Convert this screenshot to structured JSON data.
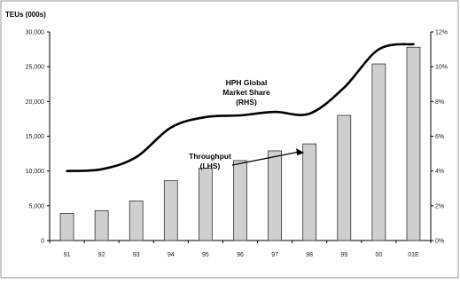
{
  "chart_data": {
    "type": "bar",
    "title": "",
    "categories": [
      "91",
      "92",
      "93",
      "94",
      "95",
      "96",
      "97",
      "98",
      "99",
      "00",
      "01E"
    ],
    "left_axis": {
      "unit_label": "TEUs (000s)",
      "ylim": [
        0,
        30000
      ],
      "ticks": [
        "0",
        "5,000",
        "10,000",
        "15,000",
        "20,000",
        "25,000",
        "30,000"
      ]
    },
    "right_axis": {
      "ylim": [
        0,
        12
      ],
      "ticks": [
        "0%",
        "2%",
        "4%",
        "6%",
        "8%",
        "10%",
        "12%"
      ]
    },
    "series": [
      {
        "type": "bar",
        "axis": "left",
        "color": "#cfcfcf",
        "values": [
          3900,
          4300,
          5700,
          8600,
          10400,
          11500,
          12900,
          13900,
          18000,
          25400,
          27800
        ]
      },
      {
        "type": "line",
        "axis": "right",
        "color": "#000000",
        "values": [
          4.0,
          4.1,
          4.8,
          6.5,
          7.1,
          7.2,
          7.4,
          7.3,
          8.8,
          11.0,
          11.3
        ]
      }
    ],
    "annotations": [
      {
        "lines": [
          "HPH Global",
          "Market Share",
          "(RHS)"
        ]
      },
      {
        "lines": [
          "Throughput",
          "(LHS)"
        ]
      }
    ],
    "grid": false,
    "legend": "none"
  }
}
